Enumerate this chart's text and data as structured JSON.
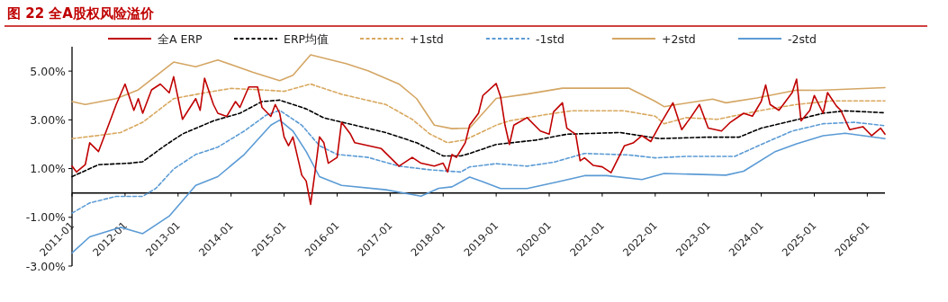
{
  "chart_data": {
    "type": "line",
    "title": "图 22 全A股权风险溢价",
    "xlim": [
      "2011-01",
      "2026-05"
    ],
    "xticks": [
      "2011-01",
      "2012-01",
      "2013-01",
      "2014-01",
      "2015-01",
      "2016-01",
      "2017-01",
      "2018-01",
      "2019-01",
      "2020-01",
      "2021-01",
      "2022-01",
      "2023-01",
      "2024-01",
      "2025-01",
      "2026-01"
    ],
    "ylim": [
      -3,
      6
    ],
    "yticks": [
      {
        "value": -3,
        "label": "-3.00%"
      },
      {
        "value": -1,
        "label": "-1.00%"
      },
      {
        "value": 1,
        "label": "1.00%"
      },
      {
        "value": 3,
        "label": "3.00%"
      },
      {
        "value": 5,
        "label": "5.00%"
      }
    ],
    "grid": false,
    "legend": "top",
    "series": [
      {
        "name": "全A ERP",
        "color": "#c00000",
        "line_style": "solid",
        "x": [
          "2011-01",
          "2011-02",
          "2011-04",
          "2011-05",
          "2011-07",
          "2011-10",
          "2011-11",
          "2012-01",
          "2012-03",
          "2012-04",
          "2012-05",
          "2012-07",
          "2012-09",
          "2012-11",
          "2012-12",
          "2013-02",
          "2013-05",
          "2013-06",
          "2013-07",
          "2013-09",
          "2013-10",
          "2013-12",
          "2014-02",
          "2014-03",
          "2014-05",
          "2014-07",
          "2014-08",
          "2014-10",
          "2014-11",
          "2014-12",
          "2015-01",
          "2015-02",
          "2015-03",
          "2015-05",
          "2015-06",
          "2015-07",
          "2015-08",
          "2015-09",
          "2015-10",
          "2015-11",
          "2016-01",
          "2016-02",
          "2016-04",
          "2016-05",
          "2016-08",
          "2016-11",
          "2017-01",
          "2017-03",
          "2017-06",
          "2017-08",
          "2017-11",
          "2018-01",
          "2018-02",
          "2018-03",
          "2018-04",
          "2018-06",
          "2018-07",
          "2018-09",
          "2018-10",
          "2019-01",
          "2019-02",
          "2019-03",
          "2019-04",
          "2019-05",
          "2019-08",
          "2019-11",
          "2020-01",
          "2020-02",
          "2020-04",
          "2020-05",
          "2020-07",
          "2020-08",
          "2020-09",
          "2020-11",
          "2021-01",
          "2021-03",
          "2021-05",
          "2021-06",
          "2021-08",
          "2021-10",
          "2021-12",
          "2022-02",
          "2022-05",
          "2022-07",
          "2022-09",
          "2022-11",
          "2023-01",
          "2023-04",
          "2023-06",
          "2023-09",
          "2023-11",
          "2024-01",
          "2024-02",
          "2024-03",
          "2024-05",
          "2024-08",
          "2024-09",
          "2024-10",
          "2024-12",
          "2025-01",
          "2025-03",
          "2025-04",
          "2025-06",
          "2025-07",
          "2025-09",
          "2025-12",
          "2026-02",
          "2026-04",
          "2026-05"
        ],
        "values": [
          1.1,
          0.86,
          1.16,
          2.06,
          1.7,
          3.14,
          3.63,
          4.47,
          3.39,
          3.87,
          3.27,
          4.23,
          4.47,
          4.11,
          4.77,
          3.02,
          3.87,
          3.39,
          4.71,
          3.63,
          3.27,
          3.14,
          3.75,
          3.51,
          4.35,
          4.35,
          3.51,
          3.14,
          3.63,
          3.27,
          2.3,
          1.94,
          2.3,
          0.73,
          0.49,
          -0.47,
          0.86,
          2.3,
          2.06,
          1.22,
          1.46,
          2.9,
          2.42,
          2.06,
          1.94,
          1.82,
          1.46,
          1.1,
          1.46,
          1.22,
          1.1,
          1.22,
          0.86,
          1.58,
          1.46,
          2.06,
          2.78,
          3.27,
          4.0,
          4.49,
          3.94,
          2.78,
          1.99,
          2.78,
          3.09,
          2.54,
          2.41,
          3.33,
          3.7,
          2.66,
          2.41,
          1.32,
          1.44,
          1.13,
          1.07,
          0.83,
          1.56,
          1.93,
          2.05,
          2.35,
          2.11,
          2.78,
          3.7,
          2.6,
          3.09,
          3.63,
          2.66,
          2.54,
          2.9,
          3.27,
          3.15,
          3.76,
          4.43,
          3.63,
          3.39,
          4.12,
          4.67,
          2.96,
          3.39,
          4.0,
          3.27,
          4.12,
          3.57,
          3.39,
          2.6,
          2.72,
          2.35,
          2.66,
          2.41
        ]
      },
      {
        "name": "ERP均值",
        "color": "#000000",
        "line_style": "dashed",
        "x": [
          "2011-01",
          "2011-07",
          "2012-02",
          "2012-05",
          "2012-10",
          "2013-02",
          "2013-09",
          "2014-03",
          "2014-08",
          "2014-12",
          "2015-06",
          "2015-10",
          "2016-05",
          "2016-12",
          "2017-07",
          "2018-01",
          "2018-05",
          "2018-07",
          "2019-01",
          "2019-10",
          "2020-05",
          "2021-05",
          "2022-02",
          "2023-01",
          "2023-08",
          "2024-01",
          "2024-08",
          "2025-03",
          "2025-08",
          "2026-05"
        ],
        "values": [
          0.67,
          1.16,
          1.22,
          1.28,
          1.94,
          2.42,
          2.96,
          3.27,
          3.75,
          3.81,
          3.45,
          3.08,
          2.78,
          2.48,
          2.06,
          1.52,
          1.52,
          1.62,
          1.99,
          2.17,
          2.41,
          2.48,
          2.23,
          2.29,
          2.29,
          2.66,
          2.96,
          3.27,
          3.37,
          3.29
        ]
      },
      {
        "name": "+1std",
        "color": "#d9a85f",
        "line_style": "dashed",
        "x": [
          "2011-01",
          "2011-07",
          "2011-12",
          "2012-05",
          "2012-12",
          "2013-07",
          "2014-01",
          "2014-08",
          "2015-01",
          "2015-07",
          "2016-02",
          "2016-12",
          "2017-06",
          "2017-10",
          "2018-02",
          "2018-06",
          "2019-01",
          "2019-04",
          "2019-12",
          "2020-06",
          "2021-06",
          "2022-01",
          "2022-03",
          "2022-08",
          "2023-03",
          "2024-01",
          "2024-09",
          "2025-05",
          "2026-05"
        ],
        "values": [
          2.23,
          2.36,
          2.48,
          2.9,
          3.87,
          4.11,
          4.29,
          4.23,
          4.17,
          4.47,
          4.05,
          3.63,
          3.02,
          2.42,
          2.06,
          2.18,
          2.78,
          2.96,
          3.21,
          3.37,
          3.37,
          3.15,
          2.84,
          3.09,
          3.02,
          3.39,
          3.63,
          3.78,
          3.78
        ]
      },
      {
        "name": "-1std",
        "color": "#5b9bd5",
        "line_style": "dashed",
        "x": [
          "2011-01",
          "2011-05",
          "2011-11",
          "2012-05",
          "2012-08",
          "2012-12",
          "2013-05",
          "2013-10",
          "2014-04",
          "2014-09",
          "2014-12",
          "2015-05",
          "2015-09",
          "2016-01",
          "2016-08",
          "2017-03",
          "2017-10",
          "2018-05",
          "2018-07",
          "2019-01",
          "2019-08",
          "2020-02",
          "2020-09",
          "2021-07",
          "2022-01",
          "2022-08",
          "2023-07",
          "2024-01",
          "2024-08",
          "2025-03",
          "2025-10",
          "2026-05"
        ],
        "values": [
          -0.83,
          -0.41,
          -0.14,
          -0.14,
          0.19,
          0.98,
          1.58,
          1.88,
          2.54,
          3.2,
          3.39,
          2.78,
          1.94,
          1.58,
          1.46,
          1.1,
          0.95,
          0.86,
          1.07,
          1.2,
          1.1,
          1.26,
          1.62,
          1.56,
          1.44,
          1.5,
          1.5,
          1.99,
          2.54,
          2.84,
          2.9,
          2.76
        ]
      },
      {
        "name": "+2std",
        "color": "#d4a664",
        "line_style": "solid",
        "x": [
          "2011-01",
          "2011-04",
          "2011-11",
          "2012-04",
          "2012-12",
          "2013-05",
          "2013-10",
          "2014-06",
          "2014-12",
          "2015-03",
          "2015-07",
          "2016-03",
          "2016-08",
          "2017-03",
          "2017-07",
          "2017-11",
          "2018-03",
          "2018-07",
          "2019-01",
          "2019-08",
          "2020-04",
          "2021-07",
          "2022-01",
          "2022-03",
          "2022-06",
          "2023-02",
          "2023-05",
          "2023-12",
          "2024-09",
          "2025-02",
          "2026-05"
        ],
        "values": [
          3.75,
          3.63,
          3.87,
          4.23,
          5.37,
          5.18,
          5.46,
          4.95,
          4.61,
          4.83,
          5.67,
          5.31,
          5.01,
          4.47,
          3.87,
          2.78,
          2.64,
          2.66,
          3.88,
          4.06,
          4.3,
          4.3,
          3.76,
          3.54,
          3.63,
          3.85,
          3.7,
          3.9,
          4.22,
          4.21,
          4.32
        ]
      },
      {
        "name": "-2std",
        "color": "#5b9bd5",
        "line_style": "solid",
        "x": [
          "2011-01",
          "2011-05",
          "2011-12",
          "2012-05",
          "2012-11",
          "2013-05",
          "2013-10",
          "2014-04",
          "2014-10",
          "2014-12",
          "2015-03",
          "2015-06",
          "2015-09",
          "2016-02",
          "2016-12",
          "2017-08",
          "2017-12",
          "2018-03",
          "2018-07",
          "2018-10",
          "2019-02",
          "2019-08",
          "2020-03",
          "2020-09",
          "2021-02",
          "2021-10",
          "2022-03",
          "2023-05",
          "2023-09",
          "2024-04",
          "2024-09",
          "2025-03",
          "2025-08",
          "2026-05"
        ],
        "values": [
          -2.46,
          -1.8,
          -1.41,
          -1.67,
          -0.95,
          0.31,
          0.67,
          1.58,
          2.78,
          2.99,
          2.54,
          1.7,
          0.67,
          0.31,
          0.13,
          -0.13,
          0.19,
          0.25,
          0.65,
          0.46,
          0.18,
          0.18,
          0.46,
          0.71,
          0.71,
          0.55,
          0.8,
          0.73,
          0.89,
          1.68,
          2.02,
          2.35,
          2.45,
          2.23
        ]
      }
    ]
  }
}
